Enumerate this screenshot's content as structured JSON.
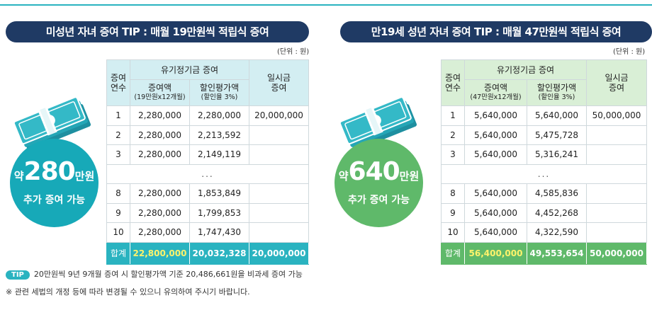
{
  "left": {
    "title": "미성년 자녀 증여 TIP : 매월 19만원씩 적립식 증여",
    "unit": "(단위 : 원)",
    "badge": {
      "prefix": "약",
      "number": "280",
      "suffix": "만원",
      "desc": "추가 증여 가능"
    },
    "headers": {
      "year": "증여\n연수",
      "group": "유기정기금 증여",
      "amount": "증여액",
      "amount_sub": "(19만원x12개월)",
      "disc": "할인평가액",
      "disc_sub": "(할인율 3%)",
      "lump": "일시금\n증여"
    },
    "rows": [
      {
        "year": "1",
        "amount": "2,280,000",
        "disc": "2,280,000",
        "lump": "20,000,000"
      },
      {
        "year": "2",
        "amount": "2,280,000",
        "disc": "2,213,592",
        "lump": ""
      },
      {
        "year": "3",
        "amount": "2,280,000",
        "disc": "2,149,119",
        "lump": ""
      },
      {
        "dots": "..."
      },
      {
        "year": "8",
        "amount": "2,280,000",
        "disc": "1,853,849",
        "lump": ""
      },
      {
        "year": "9",
        "amount": "2,280,000",
        "disc": "1,799,853",
        "lump": ""
      },
      {
        "year": "10",
        "amount": "2,280,000",
        "disc": "1,747,430",
        "lump": ""
      }
    ],
    "total": {
      "label": "합계",
      "amount": "22,800,000",
      "disc": "20,032,328",
      "lump": "20,000,000"
    },
    "colors": {
      "accent": "#2ab3c0",
      "header_bg": "#d3eef2"
    }
  },
  "right": {
    "title": "만19세 성년 자녀 증여 TIP : 매월 47만원씩 적립식 증여",
    "unit": "(단위 : 원)",
    "badge": {
      "prefix": "약",
      "number": "640",
      "suffix": "만원",
      "desc": "추가 증여 가능"
    },
    "headers": {
      "year": "증여\n연수",
      "group": "유기정기금 증여",
      "amount": "증여액",
      "amount_sub": "(47만원x12개월)",
      "disc": "할인평가액",
      "disc_sub": "(할인율 3%)",
      "lump": "일시금\n증여"
    },
    "rows": [
      {
        "year": "1",
        "amount": "5,640,000",
        "disc": "5,640,000",
        "lump": "50,000,000"
      },
      {
        "year": "2",
        "amount": "5,640,000",
        "disc": "5,475,728",
        "lump": ""
      },
      {
        "year": "3",
        "amount": "5,640,000",
        "disc": "5,316,241",
        "lump": ""
      },
      {
        "dots": "..."
      },
      {
        "year": "8",
        "amount": "5,640,000",
        "disc": "4,585,836",
        "lump": ""
      },
      {
        "year": "9",
        "amount": "5,640,000",
        "disc": "4,452,268",
        "lump": ""
      },
      {
        "year": "10",
        "amount": "5,640,000",
        "disc": "4,322,590",
        "lump": ""
      }
    ],
    "total": {
      "label": "합계",
      "amount": "56,400,000",
      "disc": "49,553,654",
      "lump": "50,000,000"
    },
    "colors": {
      "accent": "#5fb96a",
      "header_bg": "#d9efd6"
    }
  },
  "footer": {
    "tip_label": "TIP",
    "tip_text": "20만원씩 9년 9개월 증여 시 할인평가액 기준 20,486,661원을 비과세 증여 가능",
    "note": "※ 관련 세법의 개정 등에 따라 변경될 수 있으니 유의하여 주시기 바랍니다."
  },
  "icons": {
    "money": "money-stack-icon"
  }
}
